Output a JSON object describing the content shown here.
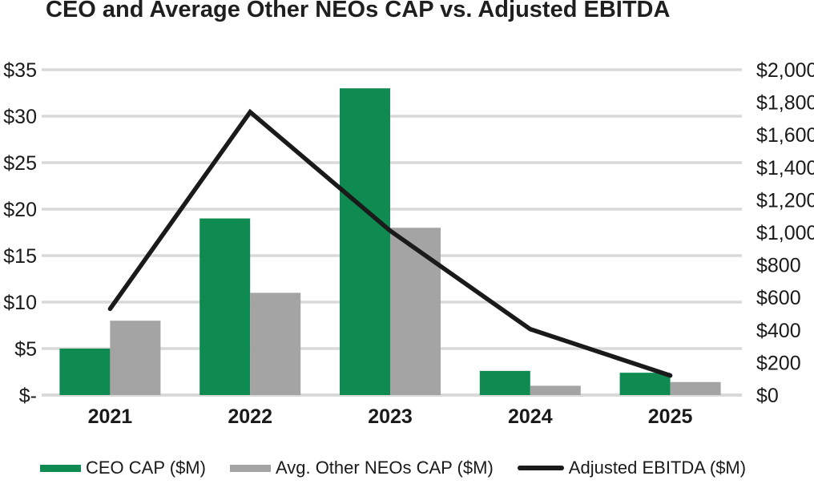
{
  "title": "CEO and Average Other NEOs CAP vs. Adjusted EBITDA",
  "colors": {
    "ceo_bar": "#0F8A50",
    "neo_bar": "#A4A4A4",
    "ebitda_line": "#1A1A1A",
    "gridline": "#D9D9D9",
    "axis_text": "#1A1A1A",
    "title_text": "#1F1F1F"
  },
  "chart_data": {
    "type": "bar",
    "subtype": "grouped-bars-with-line-overlay",
    "title": "CEO and Average Other NEOs CAP vs. Adjusted EBITDA",
    "categories": [
      "2021",
      "2022",
      "2023",
      "2024",
      "2025"
    ],
    "series": [
      {
        "name": "CEO CAP ($M)",
        "type": "bar",
        "axis": "left",
        "color": "#0F8A50",
        "values": [
          5,
          19,
          33,
          2.6,
          2.4
        ]
      },
      {
        "name": "Avg. Other NEOs CAP ($M)",
        "type": "bar",
        "axis": "left",
        "color": "#A4A4A4",
        "values": [
          8,
          11,
          18,
          1.0,
          1.4
        ]
      },
      {
        "name": "Adjusted EBITDA ($M)",
        "type": "line",
        "axis": "right",
        "color": "#1A1A1A",
        "values": [
          530,
          1740,
          1010,
          405,
          120
        ]
      }
    ],
    "left_axis": {
      "min": 0,
      "max": 35,
      "step": 5,
      "tick_labels": [
        "$-",
        "$5",
        "$10",
        "$15",
        "$20",
        "$25",
        "$30",
        "$35"
      ]
    },
    "right_axis": {
      "min": 0,
      "max": 2000,
      "step": 200,
      "tick_labels": [
        "$0",
        "$200",
        "$400",
        "$600",
        "$800",
        "$1,000",
        "$1,200",
        "$1,400",
        "$1,600",
        "$1,800",
        "$2,000"
      ]
    },
    "grid": "horizontal",
    "legend_position": "bottom"
  },
  "legend": {
    "items": [
      {
        "label": "CEO CAP ($M)"
      },
      {
        "label": "Avg. Other NEOs CAP ($M)"
      },
      {
        "label": "Adjusted EBITDA ($M)"
      }
    ]
  }
}
